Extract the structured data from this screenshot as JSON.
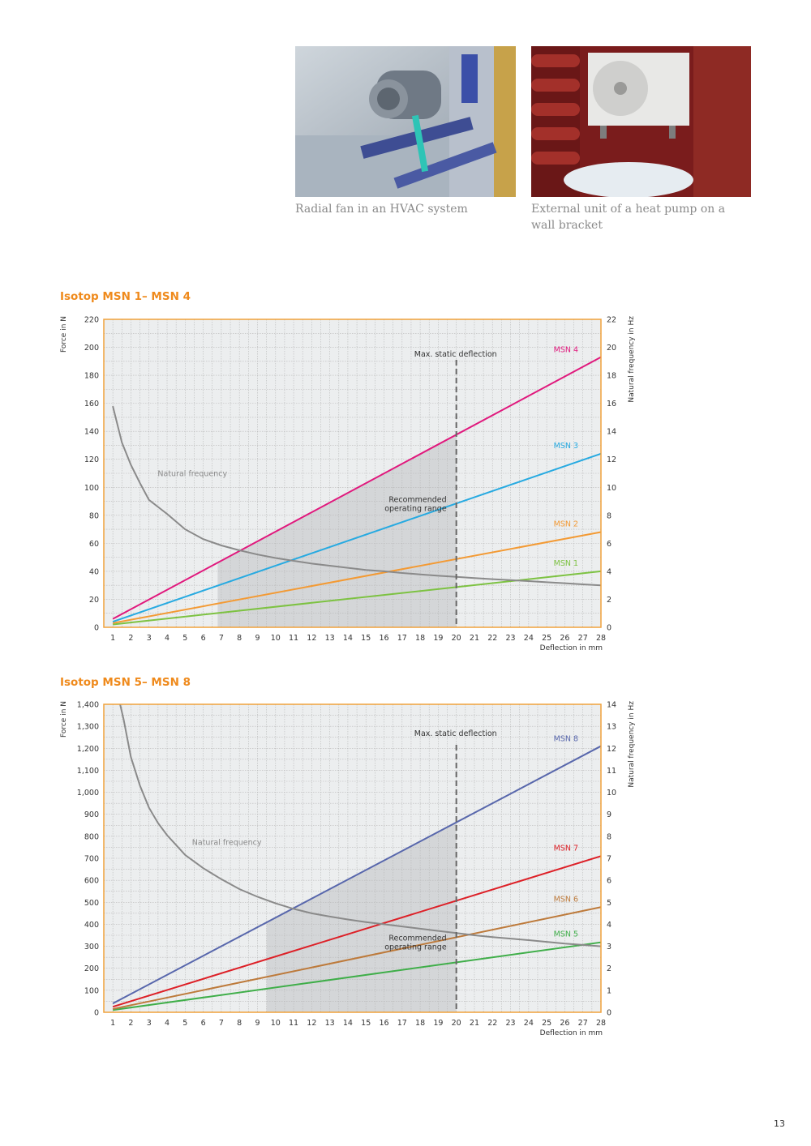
{
  "photos": [
    {
      "caption": "Radial fan in an HVAC system"
    },
    {
      "caption": "External unit of a heat pump on a wall bracket"
    }
  ],
  "page_number": "13",
  "colors": {
    "frame": "#f0a23c",
    "title": "#ef8a1c",
    "grid": "#b8b8b8",
    "shade": "#d4d6d8",
    "bg": "#eceeef"
  },
  "chart_data": [
    {
      "type": "line",
      "title": "Isotop MSN 1– MSN 4",
      "xlabel": "Deflection in mm",
      "ylabel": "Force in N",
      "y2label": "Natural frequency in Hz",
      "x_ticks": [
        1,
        2,
        3,
        4,
        5,
        6,
        7,
        8,
        9,
        10,
        11,
        12,
        13,
        14,
        15,
        16,
        17,
        18,
        19,
        20,
        21,
        22,
        23,
        24,
        25,
        26,
        27,
        28
      ],
      "xlim": [
        0.5,
        28
      ],
      "y_ticks": [
        0,
        20,
        40,
        60,
        80,
        100,
        120,
        140,
        160,
        180,
        200,
        220
      ],
      "y_tick_labels": [
        "0",
        "20",
        "40",
        "60",
        "80",
        "100",
        "120",
        "140",
        "160",
        "180",
        "200",
        "220"
      ],
      "ylim": [
        0,
        220
      ],
      "y2_ticks": [
        0,
        2,
        4,
        6,
        8,
        10,
        12,
        14,
        16,
        18,
        20,
        22
      ],
      "y2lim": [
        0,
        22
      ],
      "grid": true,
      "max_static_deflection": {
        "x": 20,
        "label": "Max. static deflection"
      },
      "recommended_range": {
        "label_line1": "Recommended",
        "label_line2": "operating range",
        "x_start": 6.8,
        "x_end": 20,
        "upper_series": "MSN 4"
      },
      "series": [
        {
          "name": "MSN 1",
          "color": "#7dc242",
          "x": [
            1,
            28
          ],
          "y": [
            2,
            40
          ]
        },
        {
          "name": "MSN 2",
          "color": "#f39a34",
          "x": [
            1,
            28
          ],
          "y": [
            3,
            68
          ]
        },
        {
          "name": "MSN 3",
          "color": "#27aae1",
          "x": [
            1,
            28
          ],
          "y": [
            4,
            124
          ]
        },
        {
          "name": "MSN 4",
          "color": "#e0197d",
          "x": [
            1,
            28
          ],
          "y": [
            6,
            193
          ]
        }
      ],
      "natural_frequency": {
        "label": "Natural frequency",
        "color": "#8a8a8a",
        "x": [
          1,
          1.5,
          2,
          2.5,
          3,
          3.5,
          4,
          5,
          6,
          7,
          8,
          9,
          10,
          11,
          12,
          13,
          14,
          15,
          16,
          17,
          18,
          19,
          20,
          21,
          22,
          23,
          24,
          25,
          26,
          27,
          28
        ],
        "y": [
          15.8,
          13.2,
          11.6,
          10.3,
          9.1,
          8.6,
          8.1,
          7.0,
          6.3,
          5.85,
          5.5,
          5.2,
          4.95,
          4.75,
          4.55,
          4.4,
          4.25,
          4.1,
          4.0,
          3.88,
          3.78,
          3.68,
          3.6,
          3.52,
          3.44,
          3.37,
          3.3,
          3.22,
          3.15,
          3.07,
          3.0
        ]
      }
    },
    {
      "type": "line",
      "title": "Isotop MSN 5– MSN 8",
      "xlabel": "Deflection in mm",
      "ylabel": "Force in N",
      "y2label": "Natural frequency in Hz",
      "x_ticks": [
        1,
        2,
        3,
        4,
        5,
        6,
        7,
        8,
        9,
        10,
        11,
        12,
        13,
        14,
        15,
        16,
        17,
        18,
        19,
        20,
        21,
        22,
        23,
        24,
        25,
        26,
        27,
        28
      ],
      "xlim": [
        0.5,
        28
      ],
      "y_ticks": [
        0,
        100,
        200,
        300,
        400,
        500,
        600,
        700,
        800,
        900,
        1000,
        1100,
        1200,
        1300,
        1400
      ],
      "y_tick_labels": [
        "0",
        "100",
        "200",
        "300",
        "400",
        "500",
        "600",
        "700",
        "800",
        "900",
        "1,000",
        "1,100",
        "1,200",
        "1,300",
        "1,400"
      ],
      "ylim": [
        0,
        1400
      ],
      "y2_ticks": [
        0,
        1,
        2,
        3,
        4,
        5,
        6,
        7,
        8,
        9,
        10,
        11,
        12,
        13,
        14
      ],
      "y2lim": [
        0,
        14
      ],
      "grid": true,
      "max_static_deflection": {
        "x": 20,
        "label": "Max. static deflection"
      },
      "recommended_range": {
        "label_line1": "Recommended",
        "label_line2": "operating range",
        "x_start": 9.5,
        "x_end": 20,
        "upper_series": "MSN 8"
      },
      "series": [
        {
          "name": "MSN 5",
          "color": "#3fae49",
          "x": [
            1,
            28
          ],
          "y": [
            10,
            318
          ]
        },
        {
          "name": "MSN 6",
          "color": "#bd7a3b",
          "x": [
            1,
            28
          ],
          "y": [
            15,
            478
          ]
        },
        {
          "name": "MSN 7",
          "color": "#dd2027",
          "x": [
            1,
            28
          ],
          "y": [
            25,
            710
          ]
        },
        {
          "name": "MSN 8",
          "color": "#5867ac",
          "x": [
            1,
            28
          ],
          "y": [
            40,
            1210
          ]
        }
      ],
      "natural_frequency": {
        "label": "Natural frequency",
        "color": "#8a8a8a",
        "x": [
          1.4,
          1.6,
          2,
          2.5,
          3,
          3.5,
          4,
          4.5,
          5,
          6,
          7,
          8,
          9,
          10,
          11,
          12,
          13,
          14,
          15,
          16,
          17,
          18,
          19,
          20,
          21,
          22,
          23,
          24,
          25,
          26,
          27,
          28
        ],
        "y": [
          14,
          13.3,
          11.6,
          10.3,
          9.3,
          8.6,
          8.05,
          7.6,
          7.15,
          6.55,
          6.05,
          5.6,
          5.25,
          4.95,
          4.7,
          4.5,
          4.35,
          4.22,
          4.1,
          4.0,
          3.9,
          3.8,
          3.7,
          3.6,
          3.5,
          3.42,
          3.35,
          3.28,
          3.2,
          3.12,
          3.06,
          3.0
        ]
      }
    }
  ]
}
